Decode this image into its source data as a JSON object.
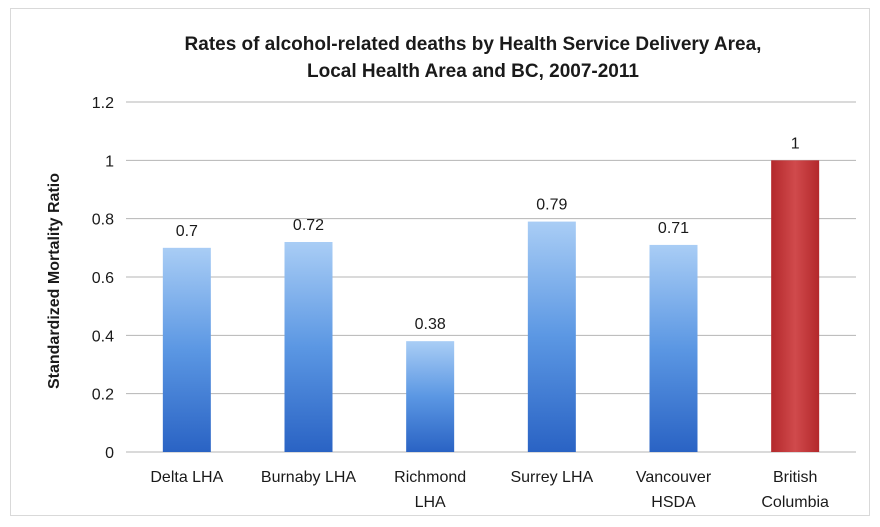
{
  "chart_data": {
    "type": "bar",
    "title_lines": [
      "Rates of alcohol-related deaths by Health Service Delivery Area,",
      "Local Health Area and BC, 2007-2011"
    ],
    "ylabel": "Standardized Mortality Ratio",
    "xlabel": "",
    "ylim": [
      0,
      1.2
    ],
    "yticks": [
      "0",
      "0.2",
      "0.4",
      "0.6",
      "0.8",
      "1",
      "1.2"
    ],
    "grid": true,
    "legend": "none",
    "categories": [
      [
        "Delta LHA"
      ],
      [
        "Burnaby LHA"
      ],
      [
        "Richmond",
        "LHA"
      ],
      [
        "Surrey LHA"
      ],
      [
        "Vancouver",
        "HSDA"
      ],
      [
        "British",
        "Columbia"
      ]
    ],
    "values": [
      0.7,
      0.72,
      0.38,
      0.79,
      0.71,
      1
    ],
    "data_labels": [
      "0.7",
      "0.72",
      "0.38",
      "0.79",
      "0.71",
      "1"
    ],
    "bar_colors": [
      "#3a78d4",
      "#3a78d4",
      "#3a78d4",
      "#3a78d4",
      "#3a78d4",
      "#c0393b"
    ]
  }
}
